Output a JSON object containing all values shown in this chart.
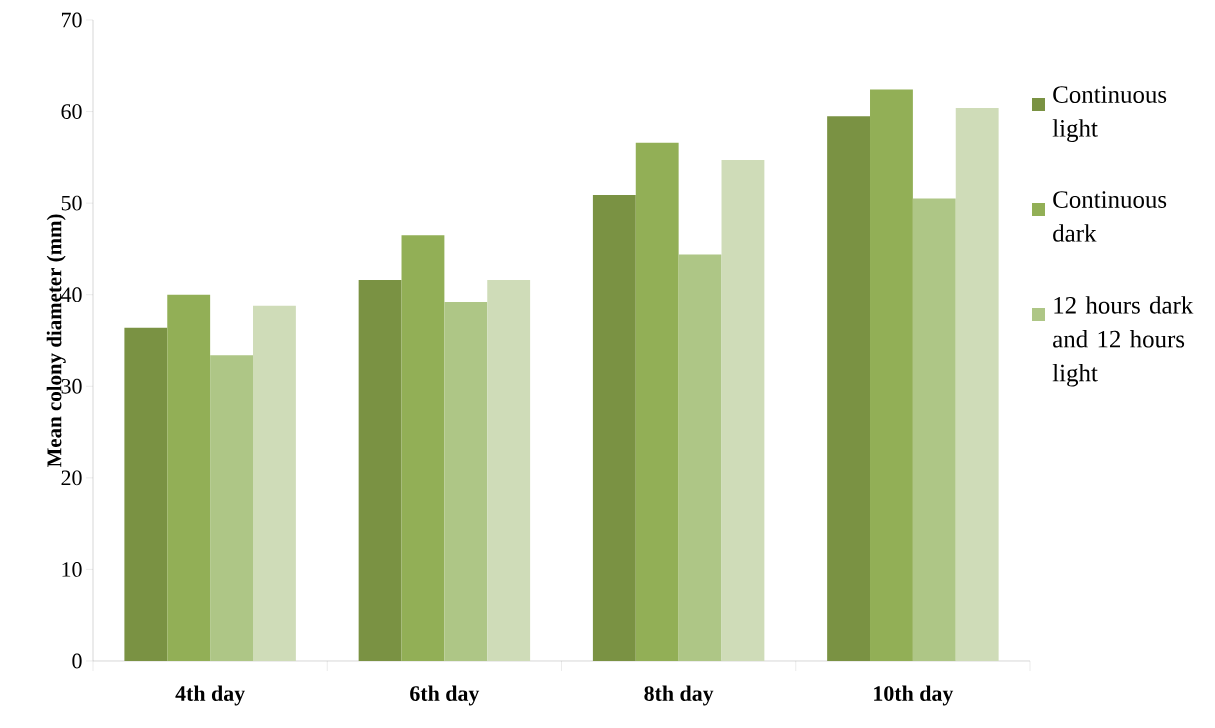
{
  "chart_data": {
    "type": "bar",
    "ylabel": "Mean colony diameter (mm)",
    "categories": [
      "4th day",
      "6th  day",
      "8th  day",
      "10th  day"
    ],
    "ylim": [
      0,
      70
    ],
    "yticks": [
      0,
      10,
      20,
      30,
      40,
      50,
      60,
      70
    ],
    "legend": "right",
    "series": [
      {
        "name": "Continuous light",
        "color": "#7a9243",
        "values": [
          36.4,
          41.6,
          50.9,
          59.5
        ]
      },
      {
        "name": "Continuous dark",
        "color": "#92af56",
        "values": [
          40.0,
          46.5,
          56.6,
          62.4
        ]
      },
      {
        "name": "12 hours dark and 12 hours light",
        "color": "#aec686",
        "values": [
          33.4,
          39.2,
          44.4,
          50.5
        ]
      },
      {
        "color": "#cfdcb8",
        "values": [
          38.8,
          41.6,
          54.7,
          60.4
        ]
      }
    ]
  }
}
